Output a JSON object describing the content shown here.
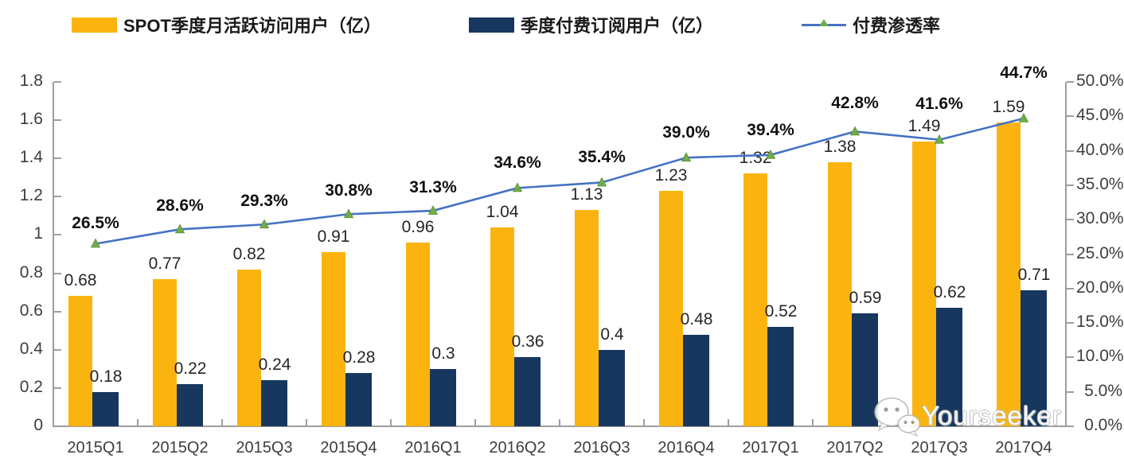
{
  "legend": {
    "items": [
      {
        "label": "SPOT季度月活跃访问用户（亿）",
        "color": "#FBB40F",
        "type": "bar"
      },
      {
        "label": "季度付费订阅用户（亿）",
        "color": "#17375E",
        "type": "bar"
      },
      {
        "label": "付费渗透率",
        "color": "#4472C4",
        "marker_color": "#70AD47",
        "type": "line"
      }
    ]
  },
  "watermark": {
    "text": "Yourseeker",
    "icon": "wechat-bubbles-icon"
  },
  "chart_data": {
    "type": "bar+line combo",
    "categories": [
      "2015Q1",
      "2015Q2",
      "2015Q3",
      "2015Q4",
      "2016Q1",
      "2016Q2",
      "2016Q3",
      "2016Q4",
      "2017Q1",
      "2017Q2",
      "2017Q3",
      "2017Q4"
    ],
    "series": [
      {
        "name": "SPOT季度月活跃访问用户（亿）",
        "type": "bar",
        "axis": "left",
        "color": "#FBB40F",
        "values": [
          0.68,
          0.77,
          0.82,
          0.91,
          0.96,
          1.04,
          1.13,
          1.23,
          1.32,
          1.38,
          1.49,
          1.59
        ],
        "labels": [
          "0.68",
          "0.77",
          "0.82",
          "0.91",
          "0.96",
          "1.04",
          "1.13",
          "1.23",
          "1.32",
          "1.38",
          "1.49",
          "1.59"
        ]
      },
      {
        "name": "季度付费订阅用户（亿）",
        "type": "bar",
        "axis": "left",
        "color": "#17375E",
        "values": [
          0.18,
          0.22,
          0.24,
          0.28,
          0.3,
          0.36,
          0.4,
          0.48,
          0.52,
          0.59,
          0.62,
          0.71
        ],
        "labels": [
          "0.18",
          "0.22",
          "0.24",
          "0.28",
          "0.3",
          "0.36",
          "0.4",
          "0.48",
          "0.52",
          "0.59",
          "0.62",
          "0.71"
        ]
      },
      {
        "name": "付费渗透率",
        "type": "line",
        "axis": "right",
        "color": "#4472C4",
        "marker": "triangle-up",
        "marker_color": "#70AD47",
        "values": [
          26.5,
          28.6,
          29.3,
          30.8,
          31.3,
          34.6,
          35.4,
          39.0,
          39.4,
          42.8,
          41.6,
          44.7
        ],
        "labels": [
          "26.5%",
          "28.6%",
          "29.3%",
          "30.8%",
          "31.3%",
          "34.6%",
          "35.4%",
          "39.0%",
          "39.4%",
          "42.8%",
          "41.6%",
          "44.7%"
        ]
      }
    ],
    "left_axis": {
      "min": 0,
      "max": 1.8,
      "tick_labels": [
        "1.8",
        "1.6",
        "1.4",
        "1.2",
        "1",
        "0.8",
        "0.6",
        "0.4",
        "0.2",
        "0"
      ]
    },
    "right_axis": {
      "min": 0,
      "max": 50,
      "unit": "%",
      "tick_labels": [
        "50.0%",
        "45.0%",
        "40.0%",
        "35.0%",
        "30.0%",
        "25.0%",
        "20.0%",
        "15.0%",
        "10.0%",
        "5.0%",
        "0.0%"
      ]
    },
    "grid": false,
    "legend_position": "top",
    "title": ""
  }
}
